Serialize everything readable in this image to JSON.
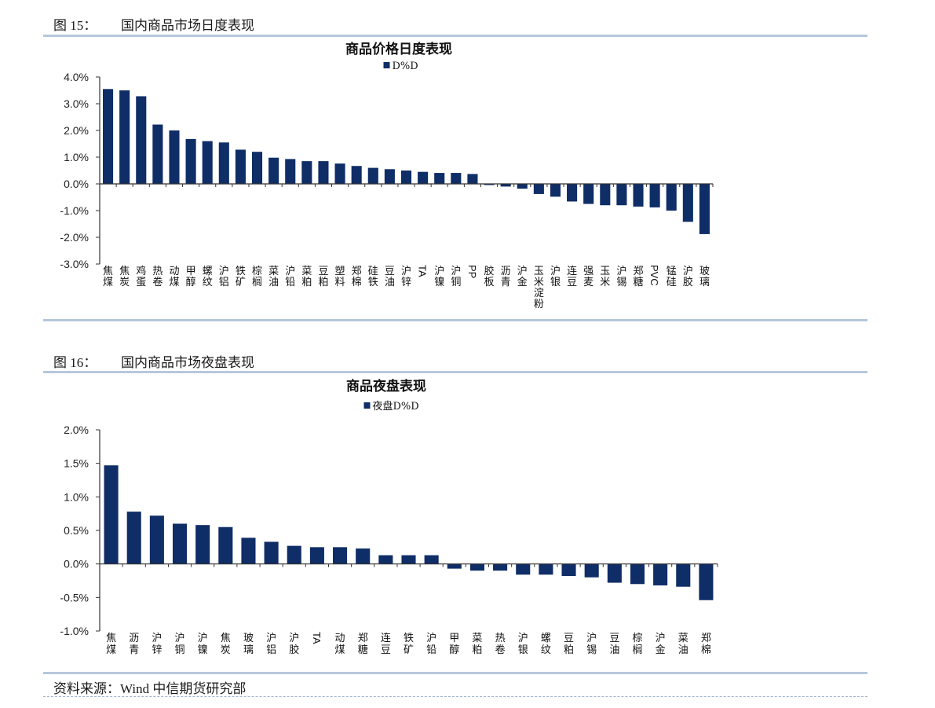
{
  "figures": [
    {
      "number": "图 15：",
      "caption": "国内商品市场日度表现"
    },
    {
      "number": "图 16：",
      "caption": "国内商品市场夜盘表现"
    }
  ],
  "source": "资料来源：Wind  中信期货研究部",
  "colors": {
    "bar": "#0f2d66",
    "rule": "#b7c7dc",
    "axis": "#333333"
  },
  "chart_data": [
    {
      "type": "bar",
      "title": "商品价格日度表现",
      "legend": "top-center",
      "grid": false,
      "ylim": [
        -3.0,
        4.0
      ],
      "yticks": [
        "4.0%",
        "3.0%",
        "2.0%",
        "1.0%",
        "0.0%",
        "-1.0%",
        "-2.0%",
        "-3.0%"
      ],
      "ytick_values": [
        4,
        3,
        2,
        1,
        0,
        -1,
        -2,
        -3
      ],
      "series": [
        {
          "name": "D%D",
          "values": [
            3.55,
            3.5,
            3.28,
            2.22,
            2.0,
            1.68,
            1.6,
            1.55,
            1.28,
            1.2,
            0.98,
            0.93,
            0.85,
            0.85,
            0.76,
            0.67,
            0.6,
            0.55,
            0.5,
            0.45,
            0.41,
            0.41,
            0.37,
            -0.01,
            -0.1,
            -0.18,
            -0.38,
            -0.48,
            -0.66,
            -0.75,
            -0.8,
            -0.8,
            -0.85,
            -0.88,
            -1.0,
            -1.42,
            -1.88
          ]
        }
      ],
      "categories": [
        "焦煤",
        "焦炭",
        "鸡蛋",
        "热卷",
        "动煤",
        "甲醇",
        "螺纹",
        "沪铝",
        "铁矿",
        "棕榈",
        "菜油",
        "沪铅",
        "菜粕",
        "豆粕",
        "塑料",
        "郑棉",
        "硅铁",
        "豆油",
        "沪锌",
        "TA",
        "沪镍",
        "沪铜",
        "PP",
        "胶板",
        "沥青",
        "沪金",
        "玉米淀粉",
        "沪银",
        "连豆",
        "强麦",
        "玉米",
        "沪锡",
        "郑糖",
        "PVC",
        "锰硅",
        "沪胶",
        "玻璃"
      ]
    },
    {
      "type": "bar",
      "title": "商品夜盘表现",
      "legend": "top-center",
      "grid": false,
      "ylim": [
        -1.0,
        2.0
      ],
      "yticks": [
        "2.0%",
        "1.5%",
        "1.0%",
        "0.5%",
        "0.0%",
        "-0.5%",
        "-1.0%"
      ],
      "ytick_values": [
        2,
        1.5,
        1,
        0.5,
        0,
        -0.5,
        -1
      ],
      "series": [
        {
          "name": "夜盘D%D",
          "values": [
            1.47,
            0.78,
            0.72,
            0.6,
            0.58,
            0.55,
            0.39,
            0.33,
            0.27,
            0.25,
            0.25,
            0.23,
            0.13,
            0.13,
            0.13,
            -0.07,
            -0.1,
            -0.1,
            -0.16,
            -0.16,
            -0.18,
            -0.2,
            -0.28,
            -0.3,
            -0.32,
            -0.34,
            -0.54
          ]
        }
      ],
      "categories": [
        "焦煤",
        "沥青",
        "沪锌",
        "沪铜",
        "沪镍",
        "焦炭",
        "玻璃",
        "沪铝",
        "沪胶",
        "TA",
        "动煤",
        "郑糖",
        "连豆",
        "铁矿",
        "沪铅",
        "甲醇",
        "菜粕",
        "热卷",
        "沪银",
        "螺纹",
        "豆粕",
        "沪锡",
        "豆油",
        "棕榈",
        "沪金",
        "菜油",
        "郑棉"
      ]
    }
  ]
}
